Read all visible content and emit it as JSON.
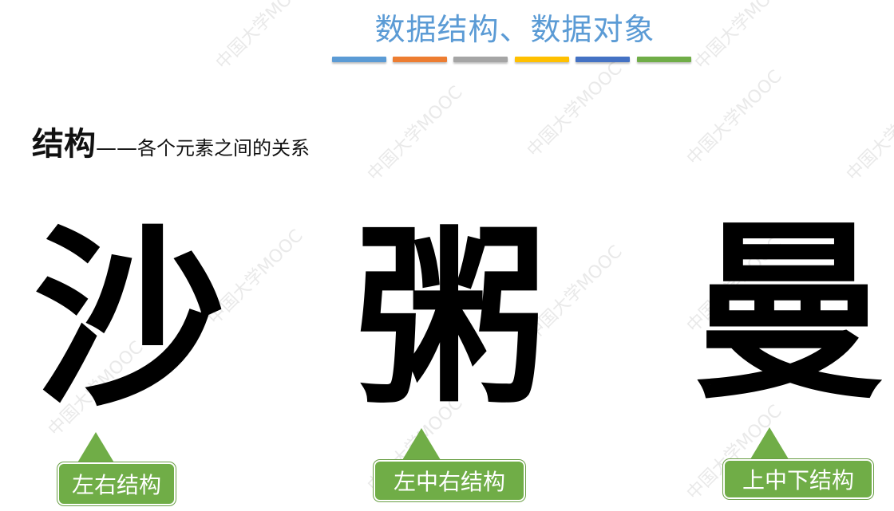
{
  "header": {
    "title": "数据结构、数据对象",
    "bars": [
      "#5b9bd5",
      "#ed7d31",
      "#a5a5a5",
      "#ffc000",
      "#4472c4",
      "#70ad47"
    ]
  },
  "subtitle": {
    "main": "结构",
    "dash": "——",
    "description": "各个元素之间的关系"
  },
  "characters": [
    {
      "glyph": "沙",
      "label": "左右结构"
    },
    {
      "glyph": "粥",
      "label": "左中右结构"
    },
    {
      "glyph": "曼",
      "label": "上中下结构"
    }
  ],
  "watermark": "中国大学MOOC",
  "colors": {
    "title": "#5b9bd5",
    "label_bg": "#70ad47",
    "label_text": "#ffffff"
  }
}
